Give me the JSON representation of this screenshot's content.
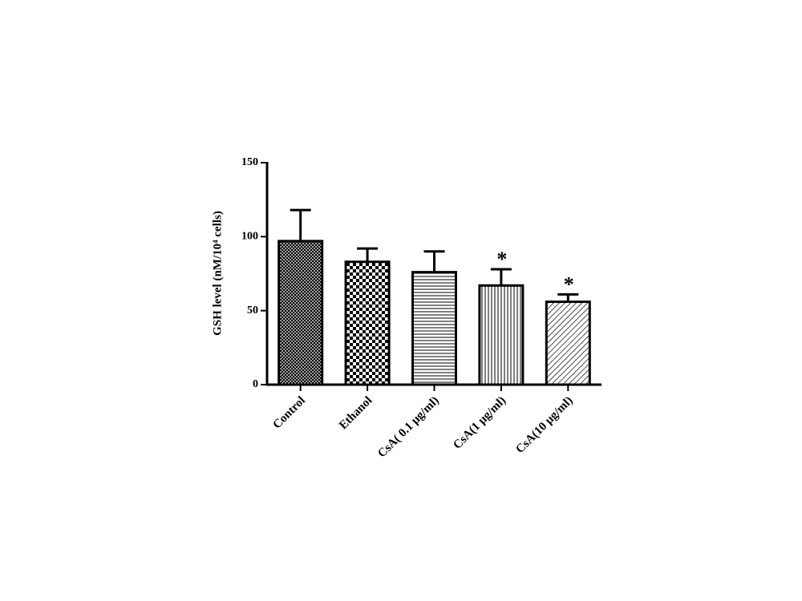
{
  "chart_data": {
    "type": "bar",
    "y_label": "GSH level (nM/10⁴ cells)",
    "categories": [
      "Control",
      "Ethanol",
      "CsA( 0.1 μg/ml)",
      "CsA(1 μg/ml)",
      "CsA(10 μg/ml)"
    ],
    "values": [
      97,
      83,
      76,
      67,
      56
    ],
    "errors": [
      21,
      9,
      14,
      11,
      5
    ],
    "significance": [
      null,
      null,
      null,
      "*",
      "*"
    ],
    "patterns": [
      "crosshatch",
      "checker",
      "horizontal",
      "vertical",
      "diagonal"
    ],
    "color": "#000000",
    "ylim": [
      0,
      150
    ],
    "yticks": [
      0,
      50,
      100,
      150
    ],
    "grid": false
  }
}
